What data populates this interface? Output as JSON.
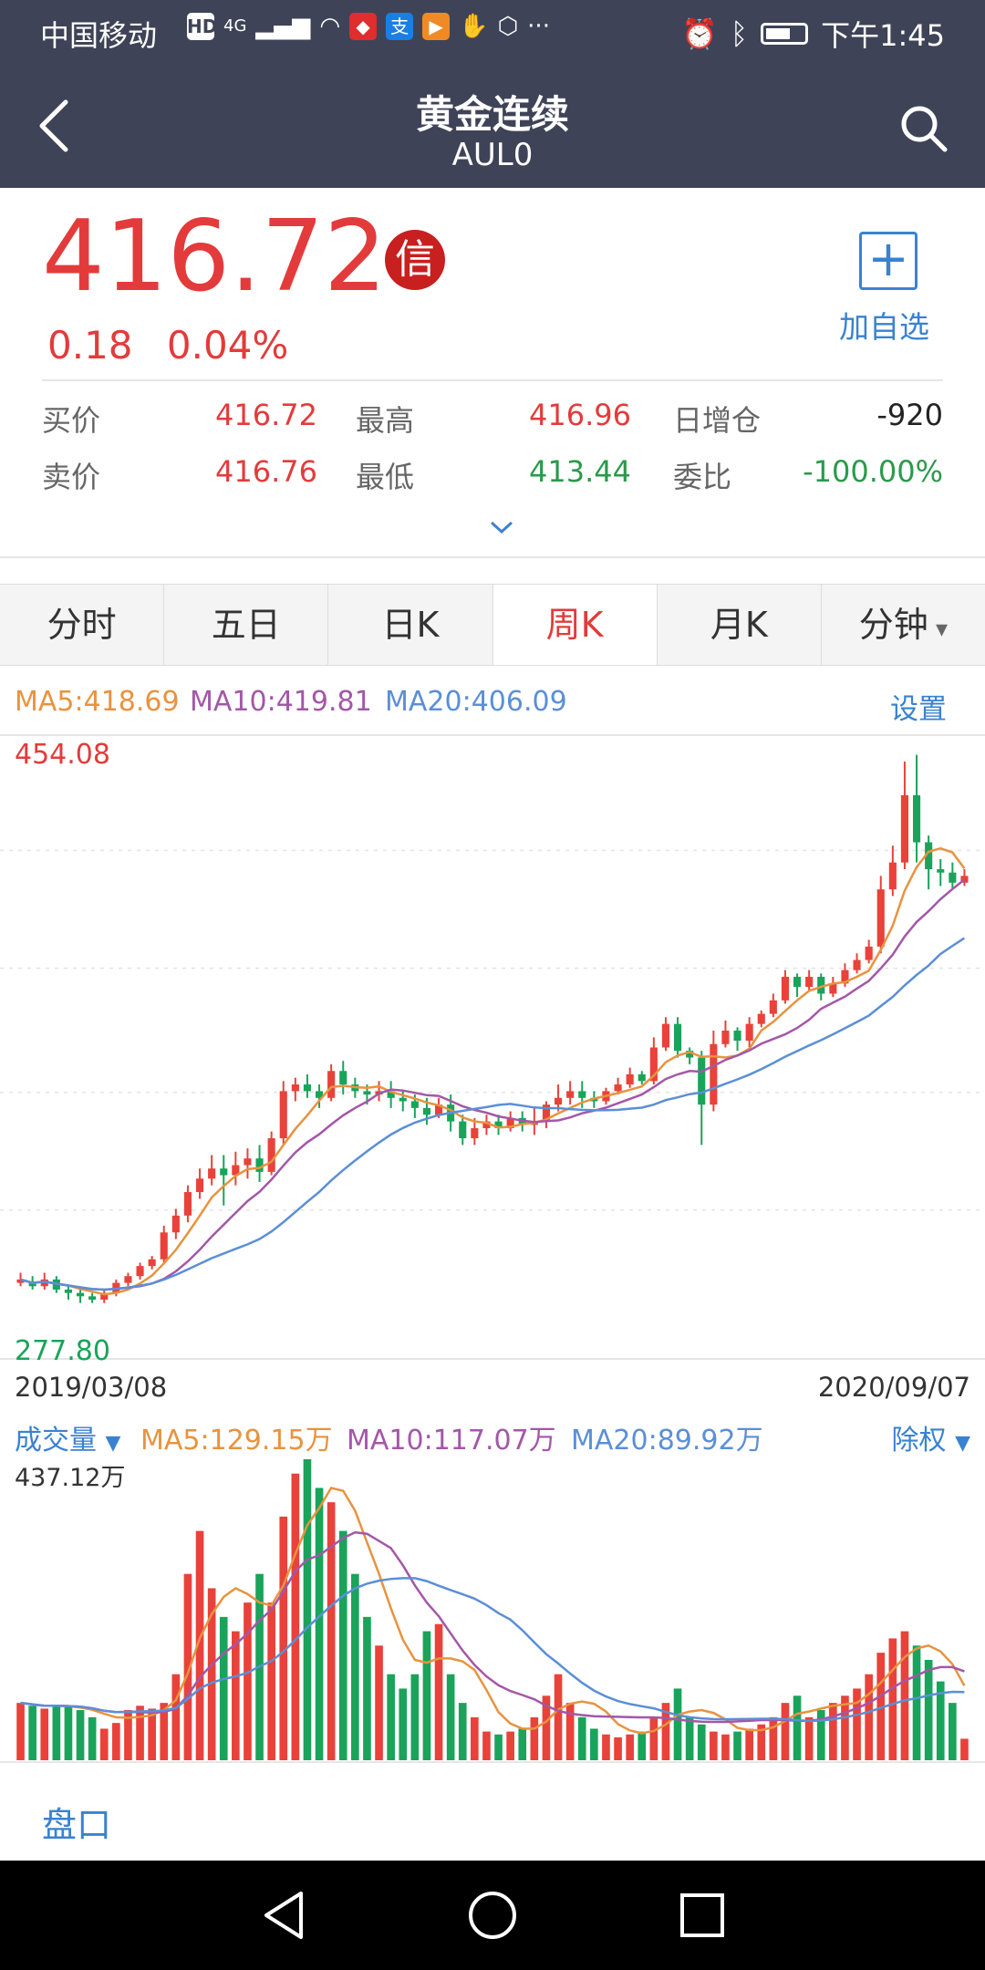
{
  "status_bar": {
    "carrier": "中国移动",
    "hd": "HD",
    "net": "4G",
    "time": "下午1:45"
  },
  "header": {
    "title": "黄金连续",
    "code": "AUL0"
  },
  "quote": {
    "price": "416.72",
    "xin": "信",
    "change": "0.18",
    "change_pct": "0.04%",
    "add_label": "加自选",
    "rows": [
      [
        {
          "label": "买价",
          "value": "416.72",
          "color": "red"
        },
        {
          "label": "最高",
          "value": "416.96",
          "color": "red"
        },
        {
          "label": "日增仓",
          "value": "-920",
          "color": "black"
        }
      ],
      [
        {
          "label": "卖价",
          "value": "416.76",
          "color": "red"
        },
        {
          "label": "最低",
          "value": "413.44",
          "color": "green"
        },
        {
          "label": "委比",
          "value": "-100.00%",
          "color": "green"
        }
      ]
    ]
  },
  "tabs": [
    {
      "label": "分时",
      "active": false
    },
    {
      "label": "五日",
      "active": false
    },
    {
      "label": "日K",
      "active": false
    },
    {
      "label": "周K",
      "active": true
    },
    {
      "label": "月K",
      "active": false
    },
    {
      "label": "分钟",
      "active": false
    }
  ],
  "kline": {
    "ma5": "MA5:418.69",
    "ma10": "MA10:419.81",
    "ma20": "MA20:406.09",
    "setting": "设置",
    "high_label": "454.08",
    "low_label": "277.80",
    "start_date": "2019/03/08",
    "end_date": "2020/09/07",
    "colors": {
      "up": "#e8423a",
      "down": "#1aa35a",
      "ma5": "#e8933f",
      "ma10": "#a357a8",
      "ma20": "#5b8fd6"
    }
  },
  "volume": {
    "label": "成交量",
    "ma5": "MA5:129.15万",
    "ma10": "MA10:117.07万",
    "ma20": "MA20:89.92万",
    "adjust": "除权",
    "max_label": "437.12万"
  },
  "bottom": {
    "pankou": "盘口"
  },
  "chart_data": {
    "type": "candlestick",
    "title": "",
    "x_range": [
      "2019/03/08",
      "2020/09/07"
    ],
    "y_range": [
      277.8,
      454.08
    ],
    "candles": [
      [
        295,
        296,
        294,
        298
      ],
      [
        295,
        294,
        293,
        297
      ],
      [
        294,
        296,
        293,
        298
      ],
      [
        296,
        293,
        292,
        297
      ],
      [
        293,
        292,
        290,
        294
      ],
      [
        292,
        291,
        289,
        293
      ],
      [
        291,
        290,
        289,
        292
      ],
      [
        290,
        292,
        289,
        293
      ],
      [
        292,
        295,
        291,
        296
      ],
      [
        295,
        297,
        294,
        298
      ],
      [
        297,
        300,
        296,
        301
      ],
      [
        300,
        302,
        299,
        303
      ],
      [
        302,
        310,
        301,
        312
      ],
      [
        310,
        315,
        308,
        317
      ],
      [
        315,
        322,
        313,
        324
      ],
      [
        322,
        326,
        320,
        329
      ],
      [
        326,
        329,
        324,
        333
      ],
      [
        329,
        327,
        318,
        333
      ],
      [
        327,
        330,
        324,
        334
      ],
      [
        330,
        332,
        326,
        335
      ],
      [
        332,
        328,
        325,
        336
      ],
      [
        328,
        338,
        327,
        340
      ],
      [
        338,
        352,
        336,
        355
      ],
      [
        352,
        354,
        349,
        356
      ],
      [
        354,
        352,
        350,
        357
      ],
      [
        352,
        350,
        347,
        354
      ],
      [
        350,
        358,
        349,
        360
      ],
      [
        358,
        354,
        351,
        361
      ],
      [
        354,
        352,
        350,
        356
      ],
      [
        352,
        351,
        348,
        354
      ],
      [
        351,
        352,
        349,
        355
      ],
      [
        352,
        350,
        347,
        355
      ],
      [
        350,
        349,
        346,
        352
      ],
      [
        349,
        347,
        344,
        351
      ],
      [
        347,
        345,
        342,
        350
      ],
      [
        345,
        348,
        344,
        350
      ],
      [
        348,
        343,
        340,
        351
      ],
      [
        343,
        338,
        336,
        345
      ],
      [
        338,
        341,
        336,
        344
      ],
      [
        341,
        343,
        339,
        345
      ],
      [
        343,
        341,
        339,
        345
      ],
      [
        341,
        344,
        340,
        346
      ],
      [
        344,
        342,
        340,
        346
      ],
      [
        342,
        343,
        339,
        347
      ],
      [
        343,
        348,
        341,
        349
      ],
      [
        348,
        350,
        346,
        354
      ],
      [
        350,
        352,
        348,
        355
      ],
      [
        352,
        350,
        347,
        355
      ],
      [
        350,
        349,
        347,
        352
      ],
      [
        349,
        352,
        348,
        353
      ],
      [
        352,
        354,
        351,
        356
      ],
      [
        354,
        357,
        353,
        359
      ],
      [
        357,
        355,
        354,
        358
      ],
      [
        355,
        365,
        354,
        368
      ],
      [
        365,
        372,
        364,
        374
      ],
      [
        372,
        364,
        362,
        374
      ],
      [
        364,
        362,
        360,
        365
      ],
      [
        362,
        348,
        336,
        364
      ],
      [
        348,
        366,
        346,
        370
      ],
      [
        366,
        370,
        365,
        373
      ],
      [
        370,
        367,
        364,
        371
      ],
      [
        367,
        372,
        365,
        374
      ],
      [
        372,
        375,
        371,
        376
      ],
      [
        375,
        379,
        374,
        381
      ],
      [
        379,
        386,
        378,
        388
      ],
      [
        386,
        383,
        380,
        387
      ],
      [
        383,
        386,
        382,
        388
      ],
      [
        386,
        381,
        379,
        387
      ],
      [
        381,
        384,
        380,
        386
      ],
      [
        384,
        388,
        383,
        390
      ],
      [
        388,
        391,
        387,
        393
      ],
      [
        391,
        395,
        390,
        397
      ],
      [
        395,
        412,
        393,
        416
      ],
      [
        412,
        420,
        410,
        425
      ],
      [
        420,
        440,
        418,
        450
      ],
      [
        440,
        426,
        420,
        452
      ],
      [
        426,
        418,
        412,
        428
      ],
      [
        418,
        417,
        413,
        421
      ],
      [
        417,
        414,
        412,
        420
      ],
      [
        414,
        416,
        413,
        418
      ]
    ],
    "volume": [
      40,
      38,
      36,
      38,
      37,
      35,
      30,
      22,
      26,
      35,
      38,
      36,
      40,
      60,
      130,
      160,
      120,
      100,
      90,
      110,
      130,
      110,
      170,
      200,
      210,
      190,
      180,
      160,
      130,
      100,
      80,
      60,
      50,
      60,
      90,
      95,
      60,
      40,
      30,
      20,
      18,
      20,
      22,
      30,
      45,
      60,
      40,
      30,
      22,
      18,
      16,
      18,
      20,
      30,
      40,
      50,
      30,
      25,
      20,
      18,
      20,
      22,
      25,
      30,
      40,
      45,
      30,
      35,
      40,
      45,
      50,
      60,
      75,
      85,
      90,
      80,
      70,
      55,
      40,
      15
    ]
  }
}
